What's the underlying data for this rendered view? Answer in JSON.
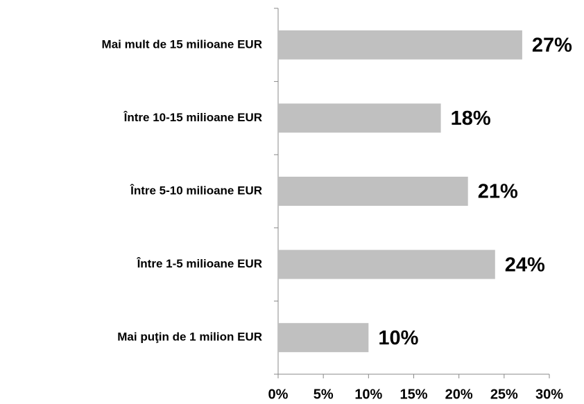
{
  "chart_data": {
    "type": "bar",
    "orientation": "horizontal",
    "categories": [
      "Mai mult de 15 milioane EUR",
      "Între 10-15 milioane EUR",
      "Între 5-10 milioane EUR",
      "Între 1-5 milioane EUR",
      "Mai puţin de 1 milion EUR"
    ],
    "values": [
      27,
      18,
      21,
      24,
      10
    ],
    "value_labels": [
      "27%",
      "18%",
      "21%",
      "24%",
      "10%"
    ],
    "color": "#c0c0c0",
    "xlim": [
      0,
      30
    ],
    "xticks": [
      {
        "value": 0,
        "label": "0%"
      },
      {
        "value": 5,
        "label": "5%"
      },
      {
        "value": 10,
        "label": "10%"
      },
      {
        "value": 15,
        "label": "15%"
      },
      {
        "value": 20,
        "label": "20%"
      },
      {
        "value": 25,
        "label": "25%"
      },
      {
        "value": 30,
        "label": "30%"
      }
    ],
    "grid": false
  }
}
